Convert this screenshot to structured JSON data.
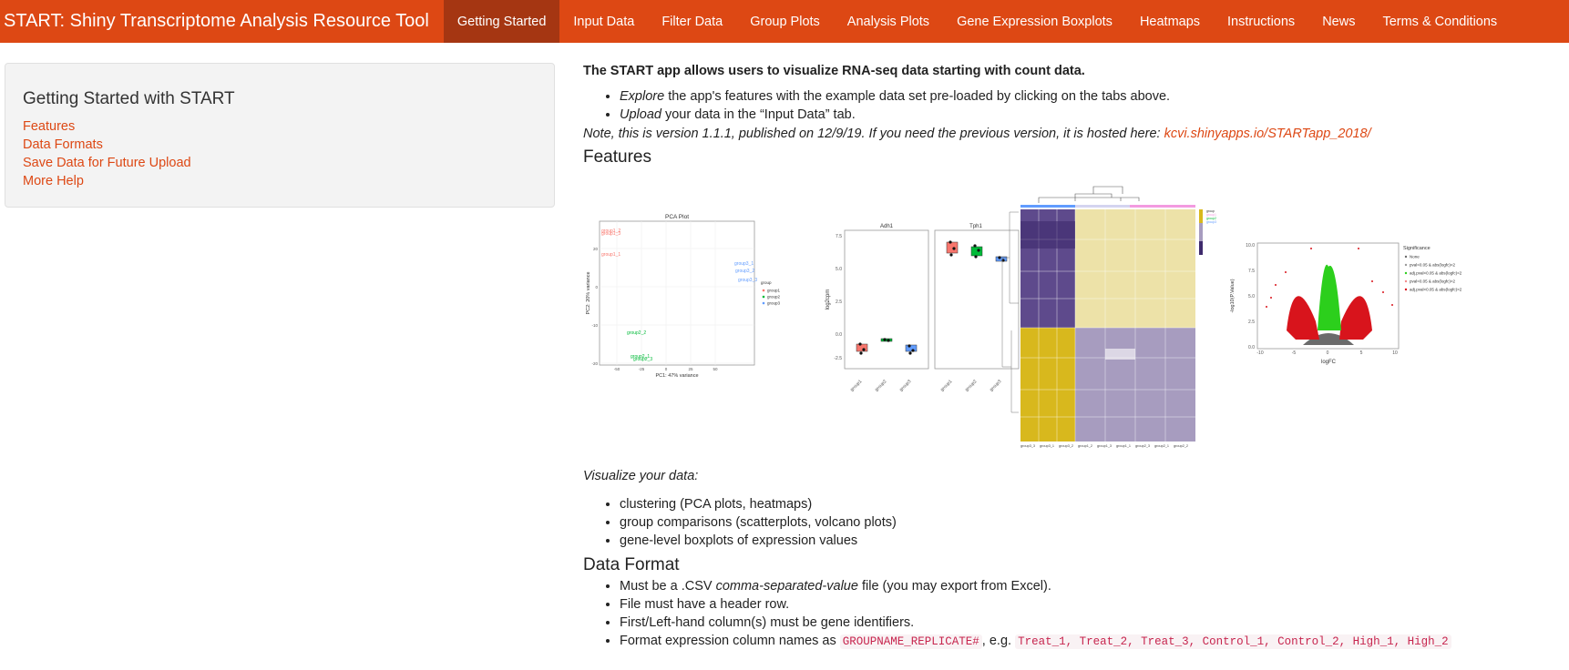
{
  "navbar": {
    "brand": "START: Shiny Transcriptome Analysis Resource Tool",
    "tabs": [
      "Getting Started",
      "Input Data",
      "Filter Data",
      "Group Plots",
      "Analysis Plots",
      "Gene Expression Boxplots",
      "Heatmaps",
      "Instructions",
      "News",
      "Terms & Conditions"
    ],
    "active_index": 0,
    "color": "#dd4814",
    "active_color": "#a53612"
  },
  "sidebar": {
    "title": "Getting Started with START",
    "links": [
      "Features",
      "Data Formats",
      "Save Data for Future Upload",
      "More Help"
    ]
  },
  "main": {
    "lead": "The START app allows users to visualize RNA-seq data starting with count data.",
    "intro_items": [
      {
        "em": "Explore",
        "text": " the app's features with the example data set pre-loaded by clicking on the tabs above."
      },
      {
        "em": "Upload",
        "text": " your data in the “Input Data” tab."
      }
    ],
    "note_text": "Note, this is version 1.1.1, published on 12/9/19. If you need the previous version, it is hosted here: ",
    "note_link": "kcvi.shinyapps.io/STARTapp_2018/",
    "features_heading": "Features",
    "visualize_label": "Visualize your data:",
    "visualize_items": [
      "clustering (PCA plots, heatmaps)",
      "group comparisons (scatterplots, volcano plots)",
      "gene-level boxplots of expression values"
    ],
    "data_format_heading": "Data Format",
    "format_items": [
      {
        "pre": "Must be a .CSV ",
        "em": "comma-separated-value",
        "post": " file (you may export from Excel)."
      },
      {
        "pre": "File must have a header row."
      },
      {
        "pre": "First/Left-hand column(s) must be gene identifiers."
      },
      {
        "pre": "Format expression column names as ",
        "code1": "GROUPNAME_REPLICATE#",
        "mid": ", e.g. ",
        "code2": "Treat_1, Treat_2, Treat_3, Control_1, Control_2, High_1, High_2"
      }
    ]
  },
  "figures": {
    "pca": {
      "title": "PCA Plot",
      "xlabel": "PC1: 47% variance",
      "ylabel": "PC2: 20% variance",
      "legend_title": "group",
      "legend_items": [
        "group1",
        "group2",
        "group3"
      ],
      "x_ticks": [
        "-50",
        "-25",
        "0",
        "25",
        "50"
      ],
      "y_ticks": [
        "20",
        "10",
        "0",
        "-10",
        "-20"
      ],
      "point_labels": [
        "group1_1",
        "group1_2",
        "group1_3",
        "group2_1",
        "group2_2",
        "group2_3",
        "group3_1",
        "group3_2",
        "group3_3"
      ]
    },
    "boxplot": {
      "panels": [
        "Adh1",
        "Tph1"
      ],
      "ylabel": "log2cpm",
      "y_ticks": [
        "7.5",
        "5.0",
        "2.5",
        "0.0",
        "-2.5"
      ],
      "groups": [
        "group1",
        "group2",
        "group3"
      ]
    },
    "heatmap": {
      "col_labels": [
        "group3_3",
        "group3_1",
        "group3_2",
        "group1_2",
        "group1_3",
        "group1_1",
        "group2_3",
        "group2_1",
        "group2_2"
      ],
      "legend_title": "group",
      "legend_items": [
        "group1",
        "group2",
        "group3"
      ]
    },
    "volcano": {
      "xlabel": "logFC",
      "ylabel": "-log10(P.Value)",
      "x_ticks": [
        "-10",
        "-5",
        "0",
        "5",
        "10"
      ],
      "y_ticks": [
        "10.0",
        "7.5",
        "5.0",
        "2.5",
        "0.0"
      ],
      "legend_title": "Significance",
      "legend_items": [
        "None",
        "pval<0.05 & abs(logfc)<2",
        "adj.pval<0.05 & abs(logfc)<2",
        "pval<0.05 & abs(logfc)>2",
        "adj.pval<0.05 & abs(logfc)>2"
      ]
    }
  }
}
